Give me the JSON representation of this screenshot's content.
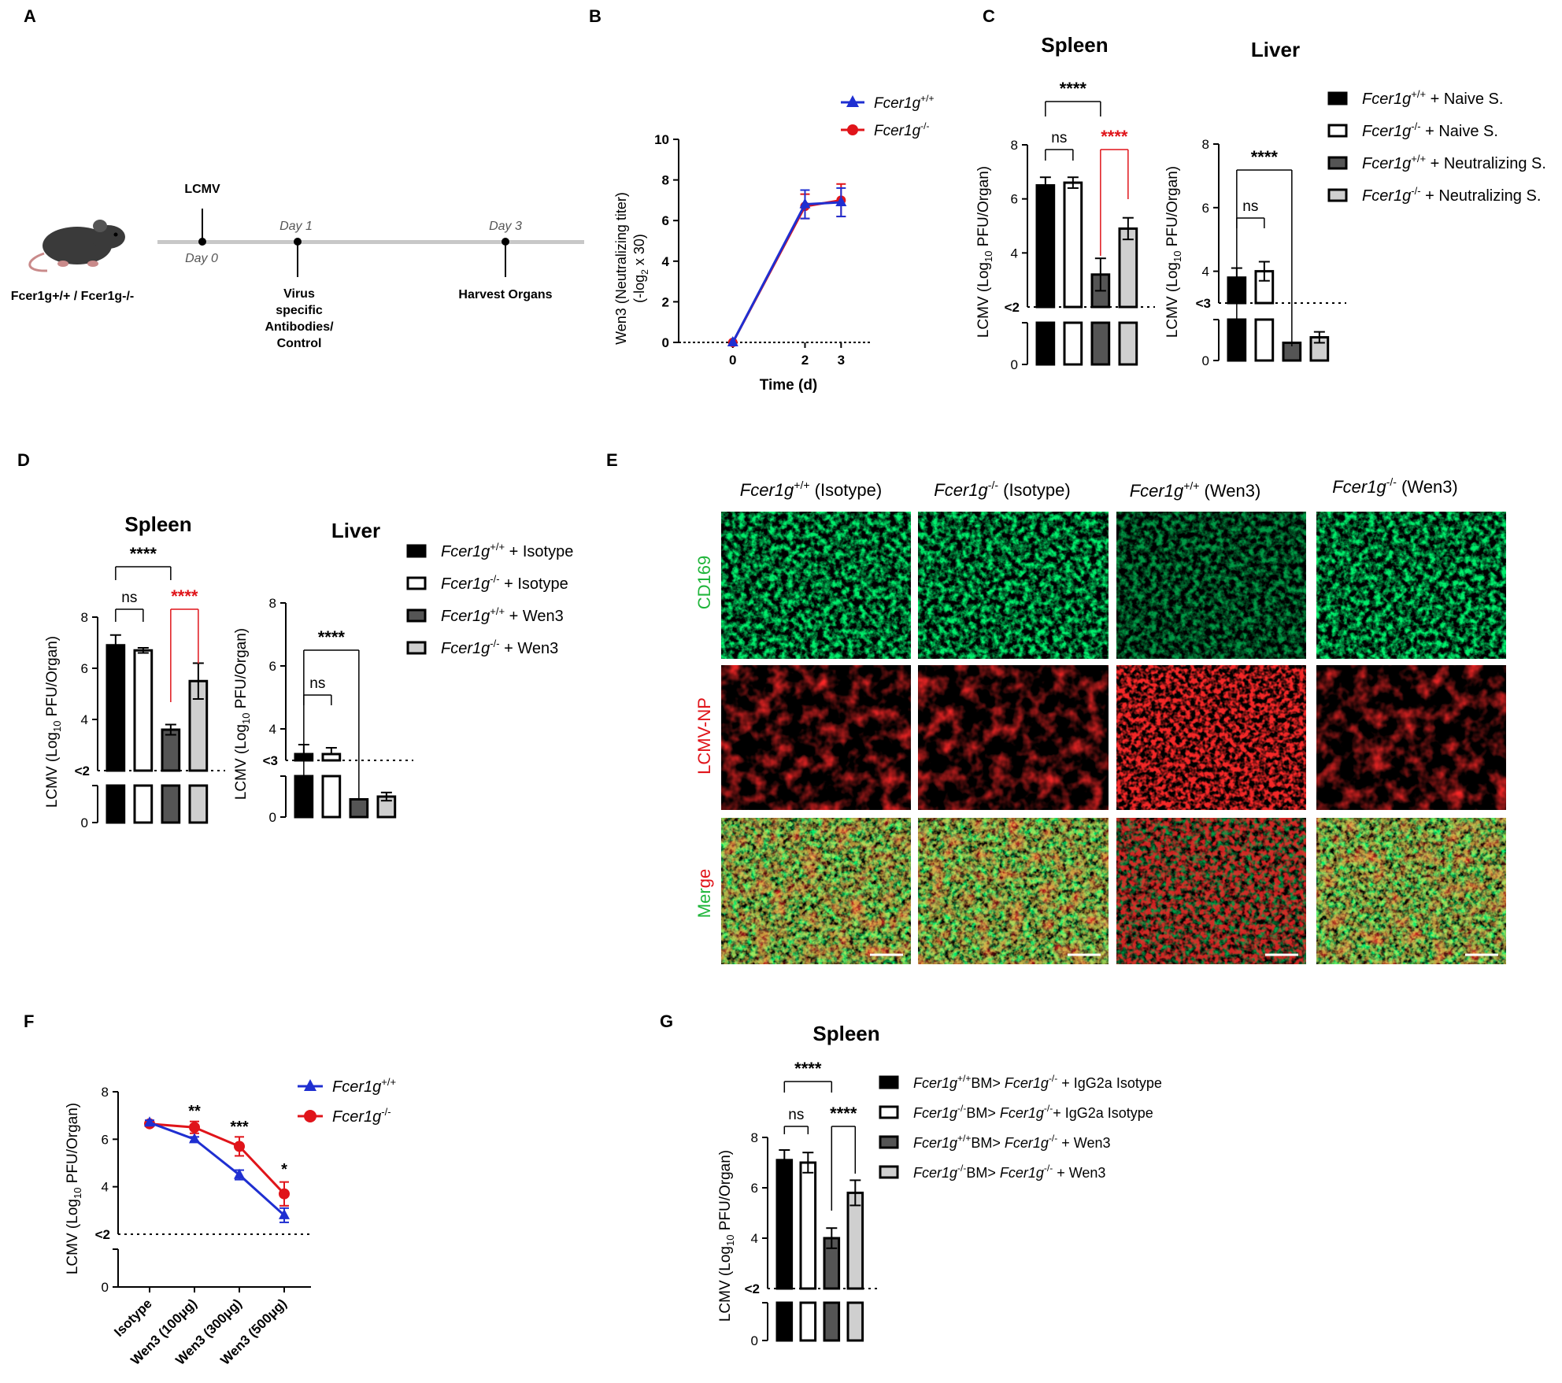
{
  "panel_labels": {
    "A": "A",
    "B": "B",
    "C": "C",
    "D": "D",
    "E": "E",
    "F": "F",
    "G": "G"
  },
  "colors": {
    "blue": "#1f2fd1",
    "red": "#e0141a",
    "dark_gray": "#555555",
    "light_gray": "#cfcfcf",
    "timeline": "#c8c8c8",
    "green": "#22c43a"
  },
  "panel_a": {
    "genotype_label": "Fcer1g+/+ / Fcer1g-/-",
    "lcmv_label": "LCMV",
    "day0": "Day 0",
    "day1": "Day 1",
    "day3": "Day 3",
    "antibody_label": [
      "Virus",
      "specific",
      "Antibodies/",
      "Control"
    ],
    "harvest_label": "Harvest Organs",
    "icon": "mouse-icon"
  },
  "chart_data": [
    {
      "id": "B",
      "type": "line",
      "xlabel": "Time (d)",
      "ylabel": "Wen3 (Neutralizing titer) (-log2 x 30)",
      "x": [
        0,
        2,
        3
      ],
      "xlim": [
        -1.5,
        3.8
      ],
      "ylim": [
        0,
        10
      ],
      "yticks": [
        0,
        2,
        4,
        6,
        8,
        10
      ],
      "series": [
        {
          "name": "Fcer1g+/+",
          "marker": "triangle",
          "color": "#1f2fd1",
          "values": [
            0,
            6.8,
            6.9
          ],
          "errors": [
            0,
            0.7,
            0.7
          ]
        },
        {
          "name": "Fcer1g-/-",
          "marker": "circle",
          "color": "#e0141a",
          "values": [
            0,
            6.7,
            7.0
          ],
          "errors": [
            0,
            0.6,
            0.8
          ]
        }
      ]
    },
    {
      "id": "C",
      "type": "bar",
      "legend": [
        "Fcer1g+/+ + Naive S.",
        "Fcer1g-/- + Naive S.",
        "Fcer1g+/+ + Neutralizing S.",
        "Fcer1g-/- + Neutralizing S."
      ],
      "ylabel": "LCMV (Log10 PFU/Organ)",
      "subplots": [
        {
          "title": "Spleen",
          "threshold_label": "<2",
          "values": [
            6.5,
            6.6,
            3.2,
            4.9
          ],
          "errors": [
            0.3,
            0.2,
            0.6,
            0.4
          ],
          "ylim": [
            0,
            8
          ],
          "yticks": [
            4,
            6,
            8
          ],
          "significance": [
            {
              "label": "ns",
              "from": 0,
              "to": 1
            },
            {
              "label": "****",
              "from": 2,
              "to": 3,
              "color": "red"
            },
            {
              "label": "****",
              "from": 0,
              "to": 2
            }
          ]
        },
        {
          "title": "Liver",
          "threshold_label": "<3",
          "values": [
            3.8,
            4.0,
            1.3,
            1.7
          ],
          "errors": [
            0.3,
            0.3,
            0.0,
            0.4
          ],
          "ylim": [
            0,
            8
          ],
          "yticks": [
            4,
            6,
            8
          ],
          "significance": [
            {
              "label": "ns",
              "from": 0,
              "to": 1
            },
            {
              "label": "****",
              "from": 0,
              "to": 2
            }
          ]
        }
      ]
    },
    {
      "id": "D",
      "type": "bar",
      "legend": [
        "Fcer1g+/+ + Isotype",
        "Fcer1g-/- + Isotype",
        "Fcer1g+/+ + Wen3",
        "Fcer1g-/- + Wen3"
      ],
      "ylabel": "LCMV (Log10 PFU/Organ)",
      "subplots": [
        {
          "title": "Spleen",
          "threshold_label": "<2",
          "values": [
            6.9,
            6.7,
            3.6,
            5.5
          ],
          "errors": [
            0.4,
            0.1,
            0.2,
            0.7
          ],
          "ylim": [
            0,
            8
          ],
          "yticks": [
            4,
            6,
            8
          ],
          "significance": [
            {
              "label": "ns",
              "from": 0,
              "to": 1
            },
            {
              "label": "****",
              "from": 2,
              "to": 3,
              "color": "red"
            },
            {
              "label": "****",
              "from": 0,
              "to": 2
            }
          ]
        },
        {
          "title": "Liver",
          "threshold_label": "<3",
          "values": [
            3.2,
            3.2,
            1.3,
            1.5
          ],
          "errors": [
            0.3,
            0.2,
            0.0,
            0.3
          ],
          "ylim": [
            0,
            8
          ],
          "yticks": [
            4,
            6,
            8
          ],
          "significance": [
            {
              "label": "ns",
              "from": 0,
              "to": 1
            },
            {
              "label": "****",
              "from": 0,
              "to": 2
            }
          ]
        }
      ]
    },
    {
      "id": "F",
      "type": "line",
      "ylabel": "LCMV (Log10 PFU/Organ)",
      "categories": [
        "Isotype",
        "Wen3 (100μg)",
        "Wen3 (300μg)",
        "Wen3 (500μg)"
      ],
      "threshold_label": "<2",
      "ylim": [
        0,
        8
      ],
      "yticks": [
        4,
        6,
        8
      ],
      "series": [
        {
          "name": "Fcer1g+/+",
          "marker": "triangle",
          "color": "#1f2fd1",
          "values": [
            6.7,
            6.0,
            4.5,
            2.8
          ],
          "errors": [
            0.1,
            0.1,
            0.2,
            0.3
          ]
        },
        {
          "name": "Fcer1g-/-",
          "marker": "circle",
          "color": "#e0141a",
          "values": [
            6.65,
            6.5,
            5.7,
            3.7
          ],
          "errors": [
            0.1,
            0.25,
            0.4,
            0.5
          ]
        }
      ],
      "significance": [
        "",
        "**",
        "***",
        "*"
      ]
    },
    {
      "id": "G",
      "type": "bar",
      "title": "Spleen",
      "legend": [
        "Fcer1g+/+BM> Fcer1g-/- + IgG2a Isotype",
        "Fcer1g-/-BM> Fcer1g-/-+ IgG2a Isotype",
        "Fcer1g+/+BM> Fcer1g-/- + Wen3",
        "Fcer1g-/-BM> Fcer1g-/- + Wen3"
      ],
      "ylabel": "LCMV (Log10 PFU/Organ)",
      "threshold_label": "<2",
      "values": [
        7.1,
        7.0,
        4.0,
        5.8
      ],
      "errors": [
        0.4,
        0.4,
        0.4,
        0.5
      ],
      "ylim": [
        0,
        8
      ],
      "yticks": [
        4,
        6,
        8
      ],
      "significance": [
        {
          "label": "ns",
          "from": 0,
          "to": 1
        },
        {
          "label": "****",
          "from": 2,
          "to": 3
        },
        {
          "label": "****",
          "from": 0,
          "to": 2
        }
      ]
    }
  ],
  "panel_e": {
    "columns": [
      "Fcer1g+/+ (Isotype)",
      "Fcer1g-/- (Isotype)",
      "Fcer1g+/+ (Wen3)",
      "Fcer1g-/- (Wen3)"
    ],
    "rows": [
      "CD169",
      "LCMV-NP",
      "Merge"
    ]
  }
}
